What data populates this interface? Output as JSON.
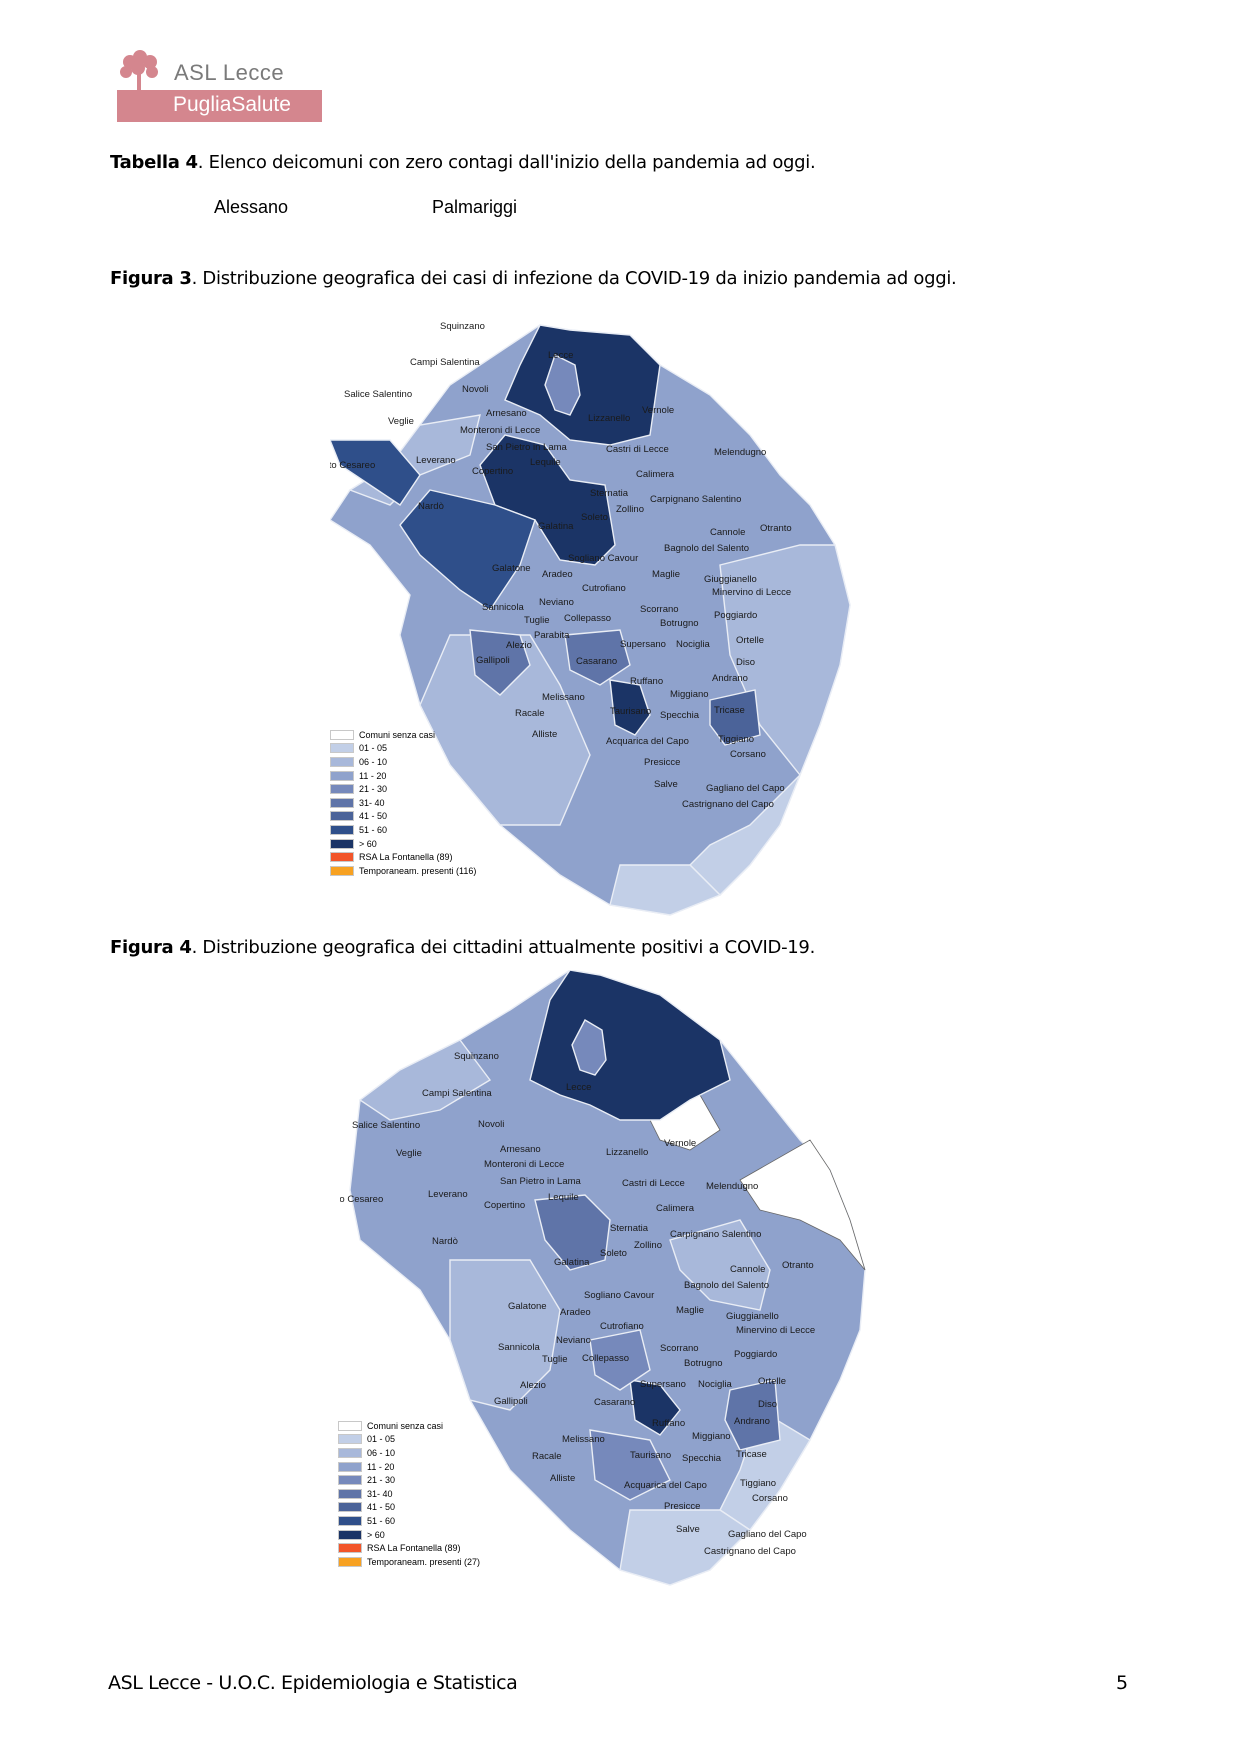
{
  "header": {
    "logo_brand": "ASL Lecce",
    "logo_band": "PugliaSalute"
  },
  "tabella4": {
    "label": "Tabella 4",
    "text": ". Elenco deicomuni con zero contagi dall'inizio della pandemia ad oggi.",
    "comuni": [
      "Alessano",
      "Palmariggi"
    ]
  },
  "figura3": {
    "label": "Figura 3",
    "text": ". Distribuzione  geografica dei  casi di infezione  da  COVID-19 da inizio pandemia ad oggi.",
    "legend": [
      "Comuni senza casi",
      "01 - 05",
      "06 - 10",
      "11 - 20",
      "21 - 30",
      "31- 40",
      "41 - 50",
      "51 - 60",
      "> 60",
      "RSA La Fontanella (89)",
      "Temporaneam. presenti (116)"
    ]
  },
  "figura4": {
    "label": "Figura 4",
    "text": ". Distribuzione  geografica dei cittadini attualmente positivi a COVID-19.",
    "legend": [
      "Comuni senza casi",
      "01 - 05",
      "06 - 10",
      "11 - 20",
      "21 - 30",
      "31- 40",
      "41 - 50",
      "51 - 60",
      "> 60",
      "RSA La Fontanella (89)",
      "Temporaneam. presenti (27)"
    ]
  },
  "legend_colors": [
    "#ffffff",
    "#c2cfe7",
    "#a8b8da",
    "#8fa2cc",
    "#7689bb",
    "#5f74a8",
    "#4b6399",
    "#2f4f8a",
    "#1b3466",
    "#f2552a",
    "#f7a121"
  ],
  "comuni_labels": [
    "Squinzano",
    "Lecce",
    "Campi Salentina",
    "Novoli",
    "Salice Salentino",
    "Arnesano",
    "Vernole",
    "Lizzanello",
    "Veglie",
    "Monteroni di Lecce",
    "San Pietro in Lama",
    "Castri di Lecce",
    "Melendugno",
    "Leverano",
    "Porto Cesareo",
    "Lequile",
    "Copertino",
    "Calimera",
    "Sternatia",
    "Carpignano Salentino",
    "Nardò",
    "Zollino",
    "Soleto",
    "Cannole",
    "Otranto",
    "Galatina",
    "Bagnolo del Salento",
    "Sogliano Cavour",
    "Galatone",
    "Aradeo",
    "Maglie",
    "Giuggianello",
    "Cutrofiano",
    "Minervino di Lecce",
    "Neviano",
    "Sannicola",
    "Scorrano",
    "Poggiardo",
    "Tuglie",
    "Collepasso",
    "Botrugno",
    "Parabita",
    "Ortelle",
    "Supersano",
    "Nociglia",
    "Alezio",
    "Gallipoli",
    "Casarano",
    "Diso",
    "Ruffano",
    "Andrano",
    "Miggiano",
    "Melissano",
    "Taurisano",
    "Tricase",
    "Racale",
    "Specchia",
    "Alliste",
    "Tiggiano",
    "Acquarica del Capo",
    "Corsano",
    "Presicce",
    "Salve",
    "Gagliano del Capo",
    "Castrignano del Capo"
  ],
  "footer": {
    "text": "ASL Lecce - U.O.C. Epidemiologia e Statistica",
    "page": "5"
  }
}
